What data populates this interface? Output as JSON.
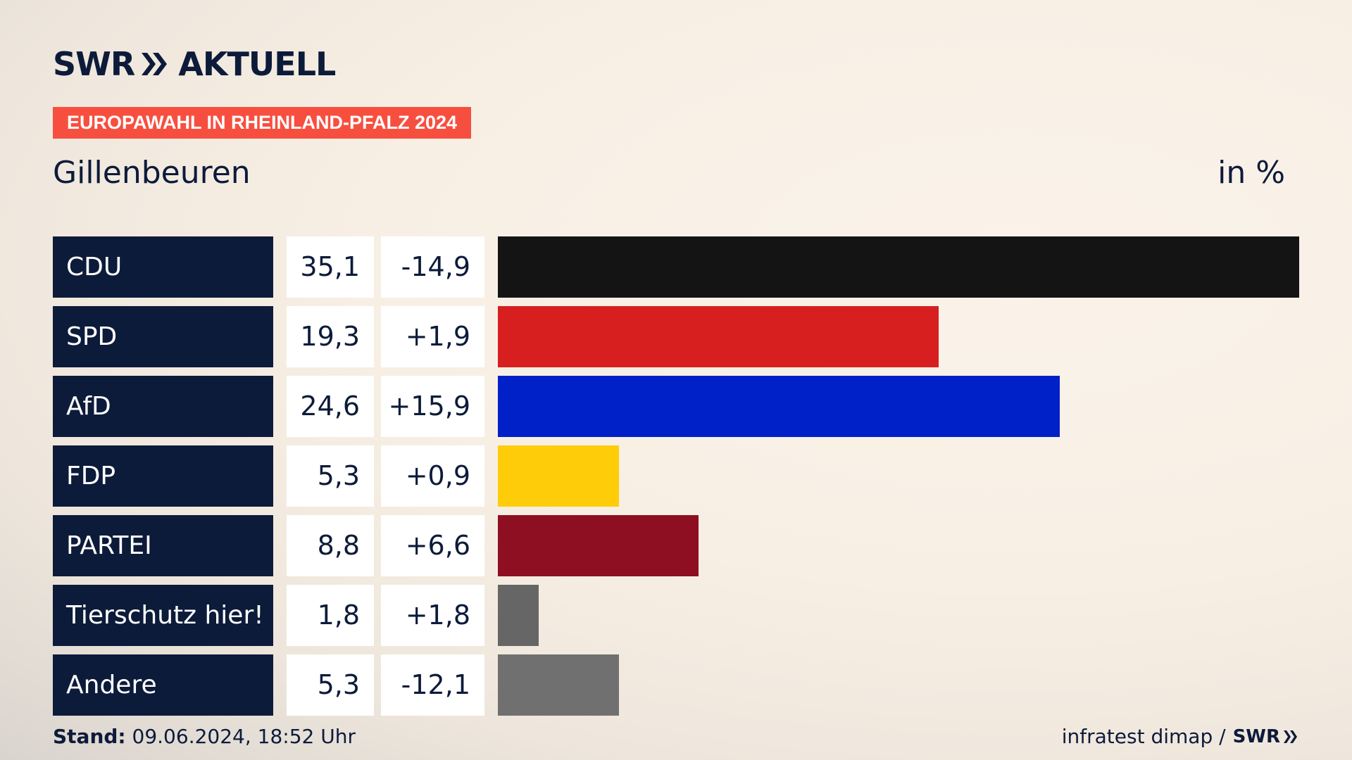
{
  "header": {
    "logo_swr": "SWR",
    "logo_aktuell": "AKTUELL",
    "badge": "EUROPAWAHL IN RHEINLAND-PFALZ 2024",
    "location": "Gillenbeuren",
    "unit": "in %"
  },
  "chart_data": {
    "type": "bar",
    "title": "EUROPAWAHL IN RHEINLAND-PFALZ 2024",
    "subtitle": "Gillenbeuren",
    "unit": "in %",
    "categories": [
      "CDU",
      "SPD",
      "AfD",
      "FDP",
      "PARTEI",
      "Tierschutz hier!",
      "Andere"
    ],
    "values": [
      35.1,
      19.3,
      24.6,
      5.3,
      8.8,
      1.8,
      5.3
    ],
    "value_labels": [
      "35,1",
      "19,3",
      "24,6",
      "5,3",
      "8,8",
      "1,8",
      "5,3"
    ],
    "diff_labels": [
      "-14,9",
      "+1,9",
      "+15,9",
      "+0,9",
      "+6,6",
      "+1,8",
      "-12,1"
    ],
    "colors": [
      "#141414",
      "#d71f1f",
      "#0020c8",
      "#ffcc0a",
      "#8f0f22",
      "#666666",
      "#707070"
    ],
    "xlim": [
      0,
      35.1
    ]
  },
  "footer": {
    "stand_label": "Stand:",
    "stand_value": "09.06.2024, 18:52 Uhr",
    "source": "infratest dimap /",
    "source_logo": "SWR"
  }
}
